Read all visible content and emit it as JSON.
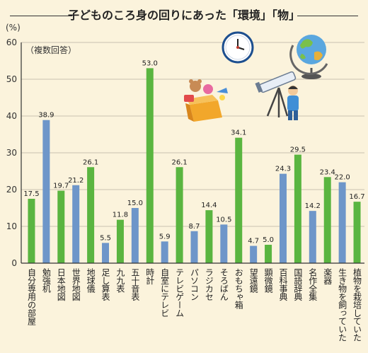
{
  "chart_data": {
    "type": "bar",
    "title": "子どものころ身の回りにあった「環境」「物」",
    "ylabel": "(%)",
    "annotation": "（複数回答）",
    "ylim": [
      0,
      60
    ],
    "yticks": [
      0,
      10,
      20,
      30,
      40,
      50,
      60
    ],
    "grid": true,
    "colors": {
      "green": "#5ab540",
      "blue": "#6e96c9",
      "axis": "#333333",
      "grid": "#b9b2a0"
    },
    "categories": [
      "自分専用の部屋",
      "勉強机",
      "日本地図",
      "世界地図",
      "地球儀",
      "足し算表",
      "九九表",
      "五十音表",
      "時計",
      "自室にテレビ",
      "テレビゲーム",
      "パソコン",
      "ラジカセ",
      "そろばん",
      "おもちゃ箱",
      "望遠鏡",
      "顕微鏡",
      "百科事典",
      "国語辞典",
      "名作全集",
      "楽器",
      "生き物を飼っていた",
      "植物を栽培していた"
    ],
    "values": [
      17.5,
      38.9,
      19.7,
      21.2,
      26.1,
      5.5,
      11.8,
      15.0,
      53.0,
      5.9,
      26.1,
      8.7,
      14.4,
      10.5,
      34.1,
      4.7,
      5.0,
      24.3,
      29.5,
      14.2,
      23.4,
      22.0,
      16.7
    ],
    "labels": [
      "17.5",
      "38.9",
      "19.7",
      "21.2",
      "26.1",
      "5.5",
      "11.8",
      "15.0",
      "53.0",
      "5.9",
      "26.1",
      "8.7",
      "14.4",
      "10.5",
      "34.1",
      "4.7",
      "5.0",
      "24.3",
      "29.5",
      "14.2",
      "23.4",
      "22.0",
      "16.7"
    ],
    "bar_colors": [
      "green",
      "blue",
      "green",
      "blue",
      "green",
      "blue",
      "green",
      "blue",
      "green",
      "blue",
      "green",
      "blue",
      "green",
      "blue",
      "green",
      "blue",
      "green",
      "blue",
      "green",
      "blue",
      "green",
      "blue",
      "green"
    ]
  },
  "decorations": {
    "icons": [
      "clock-icon",
      "globe-icon",
      "toy-box-icon",
      "telescope-icon"
    ]
  }
}
